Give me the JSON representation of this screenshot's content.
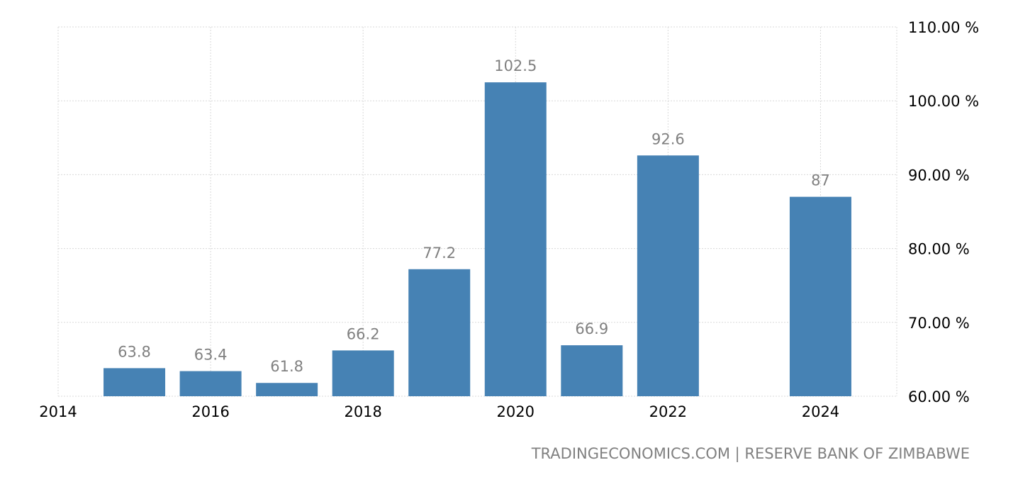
{
  "chart_data": {
    "type": "bar",
    "title": "",
    "xlabel": "",
    "ylabel": "",
    "x": [
      2015,
      2016,
      2017,
      2018,
      2019,
      2020,
      2021,
      2022,
      2024
    ],
    "values": [
      63.8,
      63.4,
      61.8,
      66.2,
      77.2,
      102.5,
      66.9,
      92.6,
      87
    ],
    "value_labels": [
      "63.8",
      "63.4",
      "61.8",
      "66.2",
      "77.2",
      "102.5",
      "66.9",
      "92.6",
      "87"
    ],
    "xlim": [
      2014,
      2025
    ],
    "ylim": [
      60,
      110
    ],
    "x_ticks": [
      2014,
      2016,
      2018,
      2020,
      2022,
      2024
    ],
    "x_tick_labels": [
      "2014",
      "2016",
      "2018",
      "2020",
      "2022",
      "2024"
    ],
    "y_ticks": [
      60,
      70,
      80,
      90,
      100,
      110
    ],
    "y_tick_labels": [
      "60.00 %",
      "70.00 %",
      "80.00 %",
      "90.00 %",
      "100.00 %",
      "110.00 %"
    ],
    "y_axis_side": "right",
    "grid": true,
    "bar_color": "#4682b4",
    "label_color": "#808080"
  },
  "source_text": "TRADINGECONOMICS.COM | RESERVE BANK OF ZIMBABWE"
}
